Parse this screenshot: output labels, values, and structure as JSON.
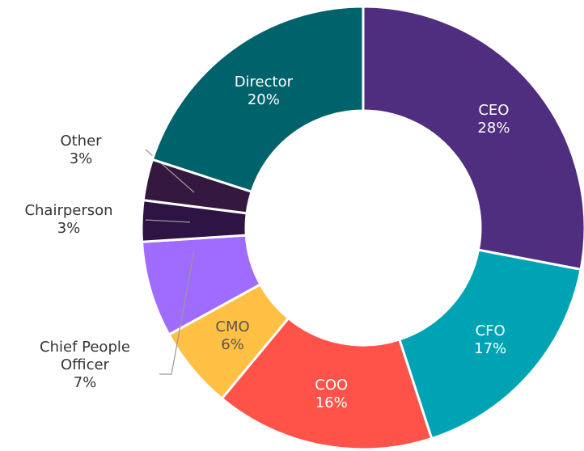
{
  "chart_data": {
    "type": "pie",
    "categories": [
      "CEO",
      "CFO",
      "COO",
      "CMO",
      "Chief People Officer",
      "Chairperson",
      "Other",
      "Director"
    ],
    "values": [
      28,
      17,
      16,
      6,
      7,
      3,
      3,
      20
    ],
    "value_labels": [
      "28%",
      "17%",
      "16%",
      "6%",
      "7%",
      "3%",
      "3%",
      "20%"
    ],
    "colors": [
      "#4f2d7f",
      "#00a3b4",
      "#ff5349",
      "#ffc043",
      "#a06bff",
      "#2d1445",
      "#35183f",
      "#00626b"
    ]
  }
}
